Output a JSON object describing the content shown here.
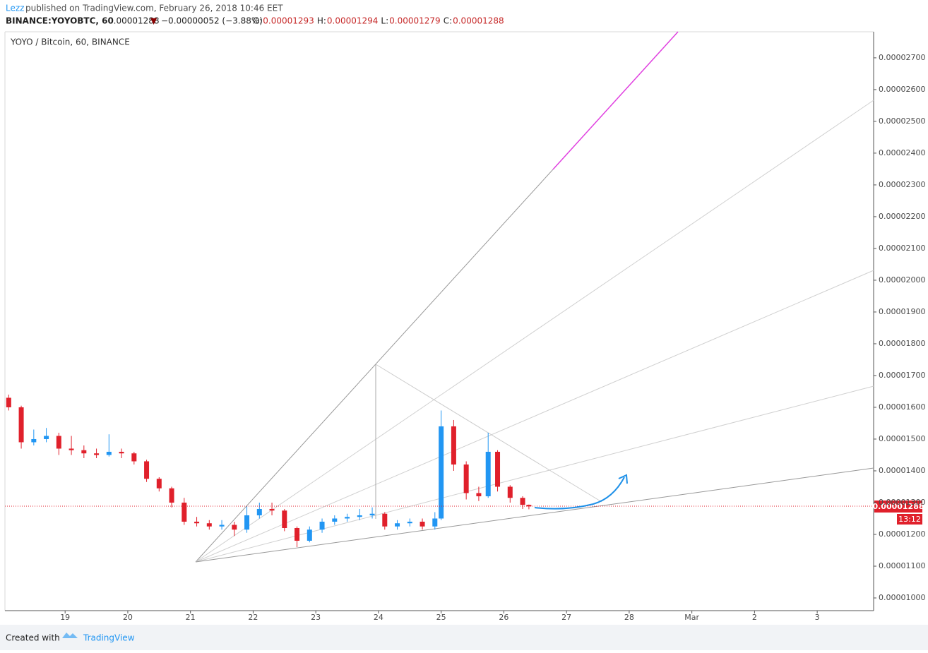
{
  "header": {
    "author": "Lezz",
    "published": "published on TradingView.com, February 26, 2018 10:46 EET",
    "symbol": "BINANCE:YOYOBTC, 60",
    "last": "0.00001288",
    "change_arrow": "▼",
    "change": "−0.00000052 (−3.88%)",
    "ohlc": [
      {
        "label": "O:",
        "value": "0.00001293"
      },
      {
        "label": "H:",
        "value": "0.00001294"
      },
      {
        "label": "L:",
        "value": "0.00001279"
      },
      {
        "label": "C:",
        "value": "0.00001288"
      }
    ]
  },
  "footer": {
    "created": "Created with",
    "brand": "TradingView"
  },
  "chart_data": {
    "type": "candlestick",
    "title": "YOYO / Bitcoin, 60, BINANCE",
    "up_color": "#2196f3",
    "down_color": "#e0202b",
    "price_label": "0.00001288",
    "countdown": "13:12",
    "x": [
      18.1,
      18.3,
      18.5,
      18.7,
      18.9,
      19.1,
      19.3,
      19.5,
      19.7,
      19.9,
      20.1,
      20.3,
      20.5,
      20.7,
      20.9,
      21.1,
      21.3,
      21.5,
      21.7,
      21.9,
      22.1,
      22.3,
      22.5,
      22.7,
      22.9,
      23.1,
      23.3,
      23.5,
      23.7,
      23.9,
      24.1,
      24.3,
      24.5,
      24.7,
      24.9,
      25.0,
      25.2,
      25.4,
      25.6,
      25.75,
      25.9,
      26.1,
      26.3,
      26.4
    ],
    "open": [
      1.63e-05,
      1.6e-05,
      1.49e-05,
      1.5e-05,
      1.51e-05,
      1.47e-05,
      1.465e-05,
      1.455e-05,
      1.45e-05,
      1.46e-05,
      1.455e-05,
      1.43e-05,
      1.375e-05,
      1.345e-05,
      1.3e-05,
      1.24e-05,
      1.235e-05,
      1.225e-05,
      1.23e-05,
      1.215e-05,
      1.26e-05,
      1.28e-05,
      1.275e-05,
      1.22e-05,
      1.18e-05,
      1.215e-05,
      1.24e-05,
      1.25e-05,
      1.255e-05,
      1.26e-05,
      1.265e-05,
      1.225e-05,
      1.235e-05,
      1.24e-05,
      1.225e-05,
      1.25e-05,
      1.54e-05,
      1.42e-05,
      1.33e-05,
      1.32e-05,
      1.46e-05,
      1.35e-05,
      1.315e-05,
      1.293e-05
    ],
    "high": [
      1.64e-05,
      1.605e-05,
      1.53e-05,
      1.535e-05,
      1.52e-05,
      1.51e-05,
      1.48e-05,
      1.47e-05,
      1.515e-05,
      1.47e-05,
      1.46e-05,
      1.435e-05,
      1.38e-05,
      1.35e-05,
      1.315e-05,
      1.255e-05,
      1.245e-05,
      1.245e-05,
      1.24e-05,
      1.29e-05,
      1.3e-05,
      1.3e-05,
      1.28e-05,
      1.225e-05,
      1.225e-05,
      1.25e-05,
      1.26e-05,
      1.265e-05,
      1.28e-05,
      1.285e-05,
      1.27e-05,
      1.245e-05,
      1.25e-05,
      1.25e-05,
      1.27e-05,
      1.59e-05,
      1.56e-05,
      1.43e-05,
      1.35e-05,
      1.52e-05,
      1.465e-05,
      1.355e-05,
      1.32e-05,
      1.294e-05
    ],
    "low": [
      1.59e-05,
      1.47e-05,
      1.48e-05,
      1.49e-05,
      1.45e-05,
      1.45e-05,
      1.44e-05,
      1.44e-05,
      1.445e-05,
      1.44e-05,
      1.42e-05,
      1.365e-05,
      1.335e-05,
      1.285e-05,
      1.23e-05,
      1.225e-05,
      1.215e-05,
      1.215e-05,
      1.195e-05,
      1.205e-05,
      1.25e-05,
      1.26e-05,
      1.21e-05,
      1.16e-05,
      1.175e-05,
      1.205e-05,
      1.23e-05,
      1.24e-05,
      1.245e-05,
      1.25e-05,
      1.215e-05,
      1.215e-05,
      1.225e-05,
      1.215e-05,
      1.215e-05,
      1.245e-05,
      1.4e-05,
      1.31e-05,
      1.305e-05,
      1.315e-05,
      1.335e-05,
      1.3e-05,
      1.28e-05,
      1.279e-05
    ],
    "close": [
      1.6e-05,
      1.49e-05,
      1.5e-05,
      1.51e-05,
      1.47e-05,
      1.465e-05,
      1.455e-05,
      1.45e-05,
      1.46e-05,
      1.455e-05,
      1.43e-05,
      1.375e-05,
      1.345e-05,
      1.3e-05,
      1.24e-05,
      1.235e-05,
      1.225e-05,
      1.23e-05,
      1.215e-05,
      1.26e-05,
      1.28e-05,
      1.275e-05,
      1.22e-05,
      1.18e-05,
      1.215e-05,
      1.24e-05,
      1.25e-05,
      1.255e-05,
      1.26e-05,
      1.265e-05,
      1.225e-05,
      1.235e-05,
      1.24e-05,
      1.225e-05,
      1.25e-05,
      1.54e-05,
      1.42e-05,
      1.33e-05,
      1.32e-05,
      1.46e-05,
      1.35e-05,
      1.315e-05,
      1.293e-05,
      1.288e-05
    ],
    "xlim": [
      18.04,
      31.9
    ],
    "xticks": [
      19,
      20,
      21,
      22,
      23,
      24,
      25,
      26,
      27,
      28,
      {
        "value": 29,
        "label": "Mar"
      },
      {
        "value": 30,
        "label": "2"
      },
      {
        "value": 31,
        "label": "3"
      }
    ],
    "ylim": [
      9.6e-06,
      2.782e-05
    ],
    "yticks": [
      {
        "value": 1e-05,
        "label": "0.00001000"
      },
      {
        "value": 1.1e-05,
        "label": "0.00001100"
      },
      {
        "value": 1.2e-05,
        "label": "0.00001200"
      },
      {
        "value": 1.3e-05,
        "label": "0.00001300"
      },
      {
        "value": 1.4e-05,
        "label": "0.00001400"
      },
      {
        "value": 1.5e-05,
        "label": "0.00001500"
      },
      {
        "value": 1.6e-05,
        "label": "0.00001600"
      },
      {
        "value": 1.7e-05,
        "label": "0.00001700"
      },
      {
        "value": 1.8e-05,
        "label": "0.00001800"
      },
      {
        "value": 1.9e-05,
        "label": "0.00001900"
      },
      {
        "value": 2e-05,
        "label": "0.00002000"
      },
      {
        "value": 2.1e-05,
        "label": "0.00002100"
      },
      {
        "value": 2.2e-05,
        "label": "0.00002200"
      },
      {
        "value": 2.3e-05,
        "label": "0.00002300"
      },
      {
        "value": 2.4e-05,
        "label": "0.00002400"
      },
      {
        "value": 2.5e-05,
        "label": "0.00002500"
      },
      {
        "value": 2.6e-05,
        "label": "0.00002600"
      },
      {
        "value": 2.7e-05,
        "label": "0.00002700"
      }
    ]
  }
}
